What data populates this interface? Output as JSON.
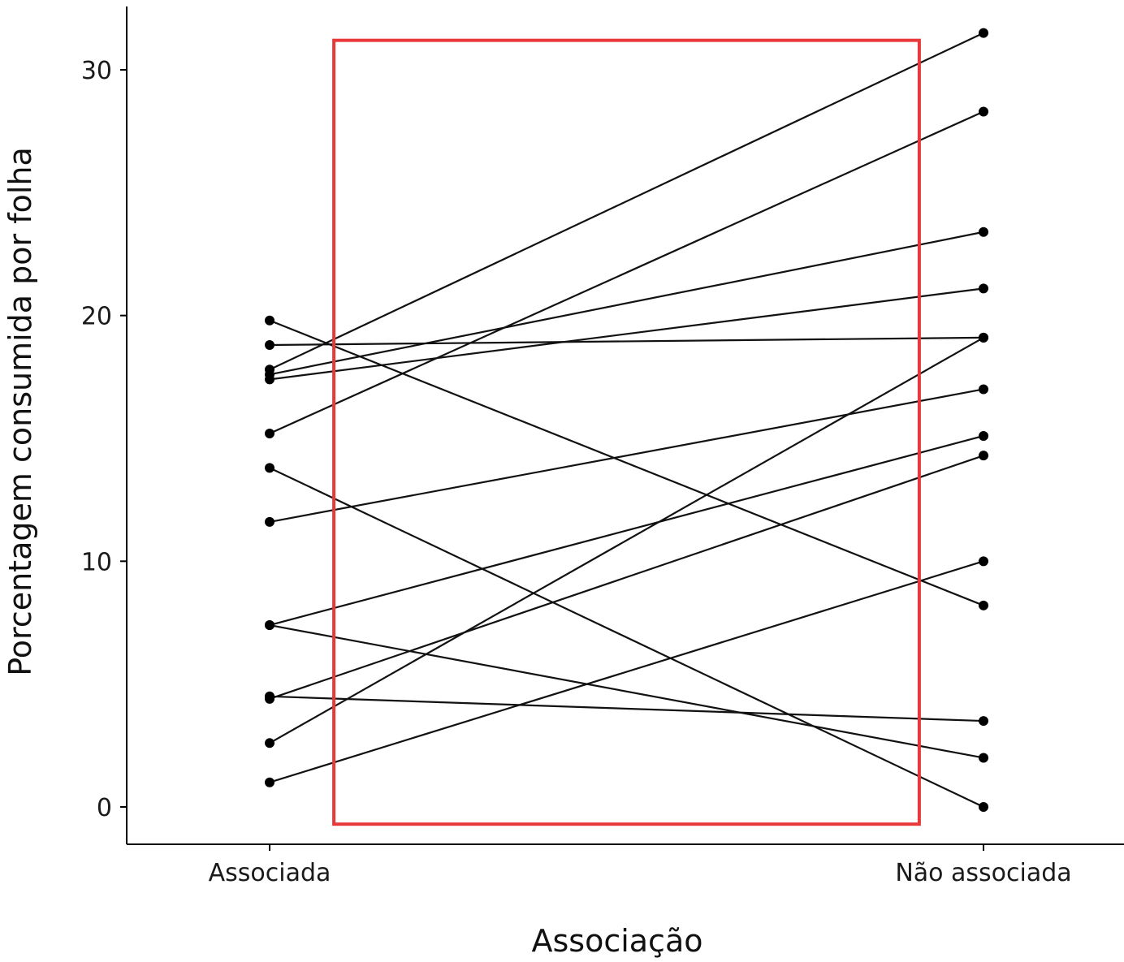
{
  "chart_data": {
    "type": "line",
    "title": "",
    "xlabel": "Associação",
    "ylabel": "Porcentagem consumida por folha",
    "categories": [
      "Associada",
      "Não associada"
    ],
    "ylim": [
      -0.6,
      32.8
    ],
    "yticks": [
      0,
      10,
      20,
      30
    ],
    "grid": false,
    "legend": "none",
    "highlight_box": {
      "x0": 0.09,
      "x1": 0.91,
      "y0": -0.7,
      "y1": 31.2,
      "color": "#e8383a"
    },
    "colors": {
      "line": "#111111",
      "point": "#000000",
      "axis": "#000000"
    },
    "pairs": [
      [
        17.8,
        31.5
      ],
      [
        15.2,
        28.3
      ],
      [
        17.6,
        23.4
      ],
      [
        17.4,
        21.1
      ],
      [
        18.8,
        19.1
      ],
      [
        19.8,
        8.2
      ],
      [
        13.8,
        0.0
      ],
      [
        2.6,
        19.1
      ],
      [
        11.6,
        17.0
      ],
      [
        7.4,
        15.1
      ],
      [
        4.4,
        14.3
      ],
      [
        1.0,
        10.0
      ],
      [
        7.4,
        2.0
      ],
      [
        4.5,
        3.5
      ]
    ]
  }
}
